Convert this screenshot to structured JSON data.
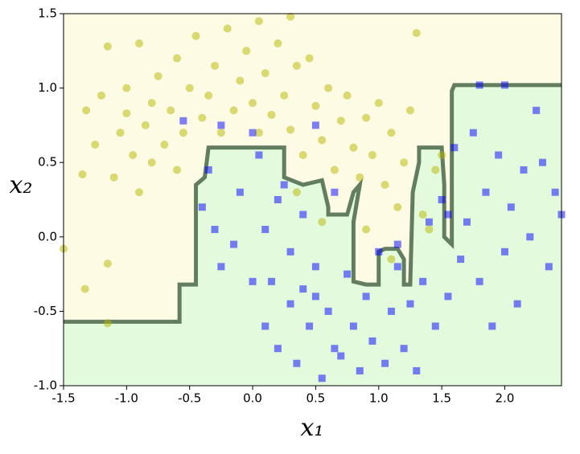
{
  "chart_data": {
    "type": "scatter",
    "x_label": "x₁",
    "y_label": "x₂",
    "xlim": [
      -1.5,
      2.45
    ],
    "ylim": [
      -1.0,
      1.5
    ],
    "xticks": [
      {
        "value": -1.5,
        "label": "-1.5"
      },
      {
        "value": -1.0,
        "label": "-1.0"
      },
      {
        "value": -0.5,
        "label": "-0.5"
      },
      {
        "value": 0.0,
        "label": "0.0"
      },
      {
        "value": 0.5,
        "label": "0.5"
      },
      {
        "value": 1.0,
        "label": "1.0"
      },
      {
        "value": 1.5,
        "label": "1.5"
      },
      {
        "value": 2.0,
        "label": "2.0"
      }
    ],
    "yticks": [
      {
        "value": -1.0,
        "label": "-1.0"
      },
      {
        "value": -0.5,
        "label": "-0.5"
      },
      {
        "value": 0.0,
        "label": "0.0"
      },
      {
        "value": 0.5,
        "label": "0.5"
      },
      {
        "value": 1.0,
        "label": "1.0"
      },
      {
        "value": 1.5,
        "label": "1.5"
      }
    ],
    "regions": {
      "upper_color": "#fdfbe3",
      "lower_color": "#e3fbdc"
    },
    "boundary": {
      "color": "#3e5e3e",
      "x": [
        -1.5,
        -0.58,
        -0.58,
        -0.45,
        -0.45,
        -0.38,
        -0.35,
        0.25,
        0.25,
        0.4,
        0.55,
        0.6,
        0.6,
        0.75,
        0.8,
        0.85,
        0.82,
        0.8,
        0.8,
        0.9,
        1.0,
        1.0,
        1.05,
        1.15,
        1.2,
        1.2,
        1.25,
        1.27,
        1.32,
        1.32,
        1.5,
        1.52,
        1.52,
        1.58,
        1.58,
        1.6,
        2.45
      ],
      "y": [
        -0.57,
        -0.57,
        -0.32,
        -0.32,
        0.35,
        0.4,
        0.6,
        0.6,
        0.4,
        0.35,
        0.38,
        0.2,
        0.15,
        0.15,
        0.3,
        0.35,
        0.2,
        0.1,
        -0.3,
        -0.32,
        -0.32,
        -0.1,
        -0.08,
        -0.08,
        -0.15,
        -0.32,
        -0.32,
        0.3,
        0.5,
        0.6,
        0.6,
        0.35,
        0.0,
        -0.05,
        0.98,
        1.02,
        1.02
      ]
    },
    "series": [
      {
        "marker": "circle",
        "color": "#b5b500",
        "x": [
          -1.5,
          -1.35,
          -1.33,
          -1.32,
          -1.25,
          -1.2,
          -1.15,
          -1.15,
          -1.1,
          -1.05,
          -1.0,
          -1.0,
          -0.95,
          -0.9,
          -0.9,
          -0.85,
          -0.8,
          -0.8,
          -0.75,
          -0.7,
          -0.65,
          -0.6,
          -0.6,
          -0.55,
          -0.5,
          -0.45,
          -0.4,
          -0.35,
          -0.3,
          -0.25,
          -0.2,
          -0.15,
          -0.1,
          -0.05,
          0.0,
          0.05,
          0.05,
          0.1,
          0.15,
          0.2,
          0.25,
          0.3,
          0.35,
          0.4,
          0.45,
          0.5,
          0.55,
          0.6,
          0.65,
          0.7,
          0.75,
          0.8,
          0.85,
          0.9,
          0.95,
          1.0,
          1.05,
          1.1,
          1.15,
          1.2,
          1.25,
          1.3,
          1.35,
          1.4,
          1.45,
          1.5,
          -1.15,
          0.55,
          0.9,
          1.1,
          0.35,
          0.3
        ],
        "values": [
          -0.08,
          0.42,
          -0.35,
          0.85,
          0.62,
          0.95,
          1.28,
          -0.18,
          0.4,
          0.7,
          0.83,
          1.0,
          0.55,
          1.3,
          0.3,
          0.75,
          0.9,
          0.5,
          1.08,
          0.62,
          0.85,
          1.2,
          0.45,
          0.7,
          1.0,
          1.35,
          0.8,
          0.95,
          1.15,
          0.7,
          1.4,
          0.85,
          1.05,
          1.25,
          0.9,
          1.45,
          0.7,
          1.1,
          0.82,
          1.3,
          0.95,
          0.72,
          1.15,
          0.55,
          1.2,
          0.88,
          0.65,
          1.0,
          0.45,
          0.78,
          0.95,
          0.6,
          0.4,
          0.8,
          0.55,
          0.9,
          0.35,
          0.7,
          0.2,
          0.5,
          0.85,
          1.37,
          0.15,
          0.05,
          0.45,
          0.55,
          -0.58,
          0.1,
          0.05,
          -0.15,
          0.3,
          1.48
        ]
      },
      {
        "marker": "square",
        "color": "#0000ff",
        "x": [
          -0.55,
          -0.4,
          -0.35,
          -0.3,
          -0.25,
          -0.15,
          -0.1,
          0.0,
          0.0,
          0.05,
          0.1,
          0.1,
          0.15,
          0.2,
          0.2,
          0.25,
          0.3,
          0.3,
          0.35,
          0.4,
          0.4,
          0.45,
          0.5,
          0.5,
          0.55,
          0.6,
          0.65,
          0.7,
          0.75,
          0.8,
          0.85,
          0.9,
          0.95,
          1.0,
          1.05,
          1.1,
          1.15,
          1.2,
          1.25,
          1.3,
          1.35,
          1.4,
          1.45,
          1.5,
          1.55,
          1.6,
          1.65,
          1.7,
          1.75,
          1.8,
          1.8,
          1.85,
          1.9,
          1.95,
          2.0,
          2.0,
          2.05,
          2.1,
          2.15,
          2.2,
          2.25,
          2.3,
          2.35,
          2.4,
          2.45,
          -0.25,
          0.5,
          1.15,
          1.55,
          0.65
        ],
        "values": [
          0.78,
          0.2,
          0.45,
          0.05,
          0.75,
          -0.05,
          0.3,
          0.7,
          -0.3,
          0.55,
          0.05,
          -0.6,
          -0.3,
          0.25,
          -0.75,
          0.35,
          -0.1,
          -0.45,
          -0.85,
          0.15,
          -0.35,
          -0.6,
          0.75,
          -0.2,
          -0.95,
          -0.5,
          0.3,
          -0.8,
          -0.25,
          -0.6,
          -0.9,
          -0.4,
          -0.7,
          -0.1,
          -0.85,
          -0.5,
          -0.2,
          -0.75,
          -0.45,
          -0.9,
          -0.3,
          0.1,
          -0.6,
          0.25,
          -0.4,
          0.6,
          -0.15,
          0.1,
          0.7,
          -0.3,
          1.02,
          0.3,
          -0.6,
          0.55,
          -0.1,
          1.02,
          0.2,
          -0.45,
          0.45,
          0.0,
          0.85,
          0.5,
          -0.2,
          0.3,
          0.15,
          -0.2,
          -0.4,
          -0.05,
          0.15,
          -0.75
        ]
      }
    ]
  }
}
